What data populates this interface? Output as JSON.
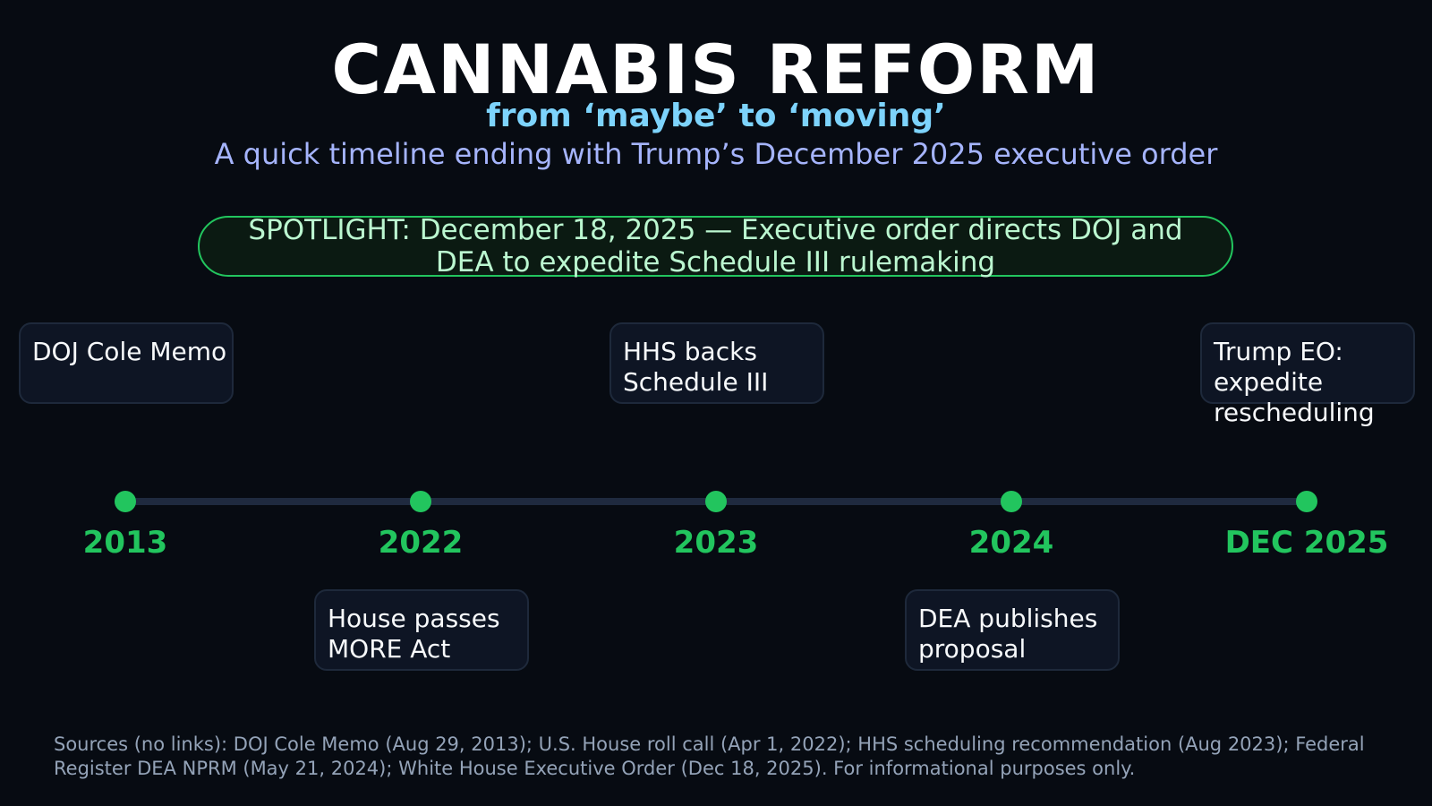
{
  "header": {
    "title": "CANNABIS REFORM",
    "subtitle": "from ‘maybe’ to ‘moving’",
    "tagline": "A quick timeline ending with Trump’s December 2025 executive order"
  },
  "spotlight": {
    "text": "SPOTLIGHT: December 18, 2025 — Executive order directs DOJ and DEA to expedite Schedule III rulemaking"
  },
  "timeline": {
    "milestones": [
      {
        "year": "2013",
        "event": "DOJ Cole Memo",
        "position": "above"
      },
      {
        "year": "2022",
        "event": "House passes MORE Act",
        "position": "below"
      },
      {
        "year": "2023",
        "event": "HHS backs Schedule III",
        "position": "above"
      },
      {
        "year": "2024",
        "event": "DEA publishes proposal",
        "position": "below"
      },
      {
        "year": "DEC 2025",
        "event": "Trump EO: expedite rescheduling",
        "position": "above"
      }
    ]
  },
  "footer": {
    "sources": "Sources (no links): DOJ Cole Memo (Aug 29, 2013); U.S. House roll call (Apr 1, 2022); HHS scheduling recommendation (Aug 2023); Federal Register DEA NPRM (May 21, 2024); White House Executive Order (Dec 18, 2025). For informational purposes only."
  },
  "colors": {
    "background": "#070b12",
    "accent": "#22c55e",
    "subtitle": "#7dd3fc",
    "tagline": "#a5b4fc"
  }
}
